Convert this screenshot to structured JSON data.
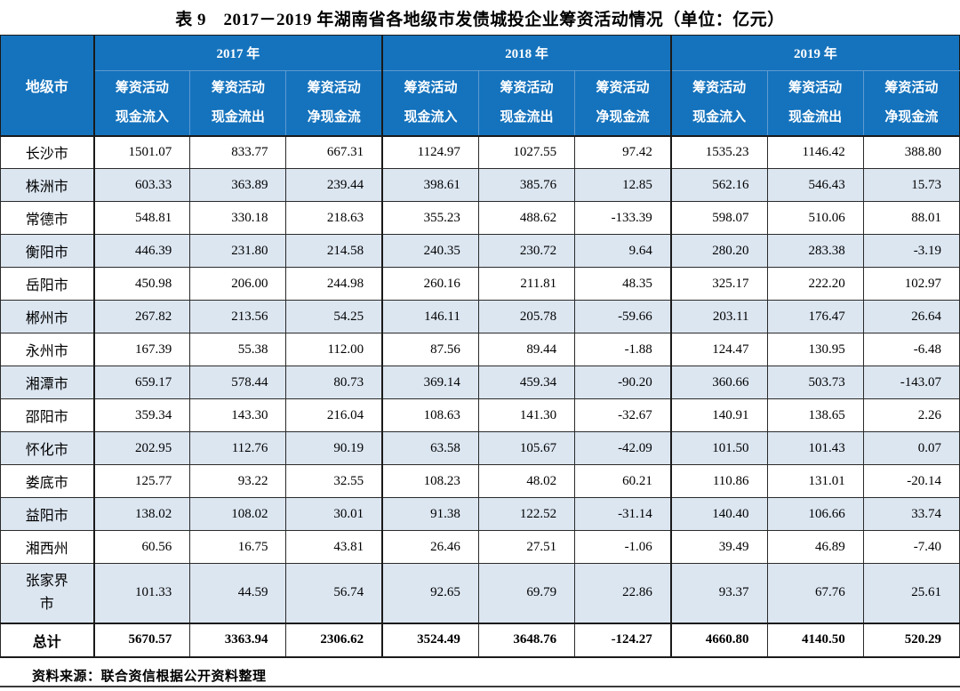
{
  "title": "表 9　2017－2019 年湖南省各地级市发债城投企业筹资活动情况（单位：亿元）",
  "source_note": "资料来源：联合资信根据公开资料整理",
  "table": {
    "city_col_header": "地级市",
    "year_groups": [
      "2017 年",
      "2018 年",
      "2019 年"
    ],
    "sub_headers": [
      {
        "line1": "筹资活动",
        "line2": "现金流入"
      },
      {
        "line1": "筹资活动",
        "line2": "现金流出"
      },
      {
        "line1": "筹资活动",
        "line2": "净现金流"
      }
    ],
    "rows": [
      {
        "city": "长沙市",
        "values": [
          "1501.07",
          "833.77",
          "667.31",
          "1124.97",
          "1027.55",
          "97.42",
          "1535.23",
          "1146.42",
          "388.80"
        ]
      },
      {
        "city": "株洲市",
        "values": [
          "603.33",
          "363.89",
          "239.44",
          "398.61",
          "385.76",
          "12.85",
          "562.16",
          "546.43",
          "15.73"
        ]
      },
      {
        "city": "常德市",
        "values": [
          "548.81",
          "330.18",
          "218.63",
          "355.23",
          "488.62",
          "-133.39",
          "598.07",
          "510.06",
          "88.01"
        ]
      },
      {
        "city": "衡阳市",
        "values": [
          "446.39",
          "231.80",
          "214.58",
          "240.35",
          "230.72",
          "9.64",
          "280.20",
          "283.38",
          "-3.19"
        ]
      },
      {
        "city": "岳阳市",
        "values": [
          "450.98",
          "206.00",
          "244.98",
          "260.16",
          "211.81",
          "48.35",
          "325.17",
          "222.20",
          "102.97"
        ]
      },
      {
        "city": "郴州市",
        "values": [
          "267.82",
          "213.56",
          "54.25",
          "146.11",
          "205.78",
          "-59.66",
          "203.11",
          "176.47",
          "26.64"
        ]
      },
      {
        "city": "永州市",
        "values": [
          "167.39",
          "55.38",
          "112.00",
          "87.56",
          "89.44",
          "-1.88",
          "124.47",
          "130.95",
          "-6.48"
        ]
      },
      {
        "city": "湘潭市",
        "values": [
          "659.17",
          "578.44",
          "80.73",
          "369.14",
          "459.34",
          "-90.20",
          "360.66",
          "503.73",
          "-143.07"
        ]
      },
      {
        "city": "邵阳市",
        "values": [
          "359.34",
          "143.30",
          "216.04",
          "108.63",
          "141.30",
          "-32.67",
          "140.91",
          "138.65",
          "2.26"
        ]
      },
      {
        "city": "怀化市",
        "values": [
          "202.95",
          "112.76",
          "90.19",
          "63.58",
          "105.67",
          "-42.09",
          "101.50",
          "101.43",
          "0.07"
        ]
      },
      {
        "city": "娄底市",
        "values": [
          "125.77",
          "93.22",
          "32.55",
          "108.23",
          "48.02",
          "60.21",
          "110.86",
          "131.01",
          "-20.14"
        ]
      },
      {
        "city": "益阳市",
        "values": [
          "138.02",
          "108.02",
          "30.01",
          "91.38",
          "122.52",
          "-31.14",
          "140.40",
          "106.66",
          "33.74"
        ]
      },
      {
        "city": "湘西州",
        "values": [
          "60.56",
          "16.75",
          "43.81",
          "26.46",
          "27.51",
          "-1.06",
          "39.49",
          "46.89",
          "-7.40"
        ]
      },
      {
        "city": "张家界市",
        "tall": true,
        "values": [
          "101.33",
          "44.59",
          "56.74",
          "92.65",
          "69.79",
          "22.86",
          "93.37",
          "67.76",
          "25.61"
        ]
      },
      {
        "city": "总计",
        "total": true,
        "values": [
          "5670.57",
          "3363.94",
          "2306.62",
          "3524.49",
          "3648.76",
          "-124.27",
          "4660.80",
          "4140.50",
          "520.29"
        ]
      }
    ]
  }
}
